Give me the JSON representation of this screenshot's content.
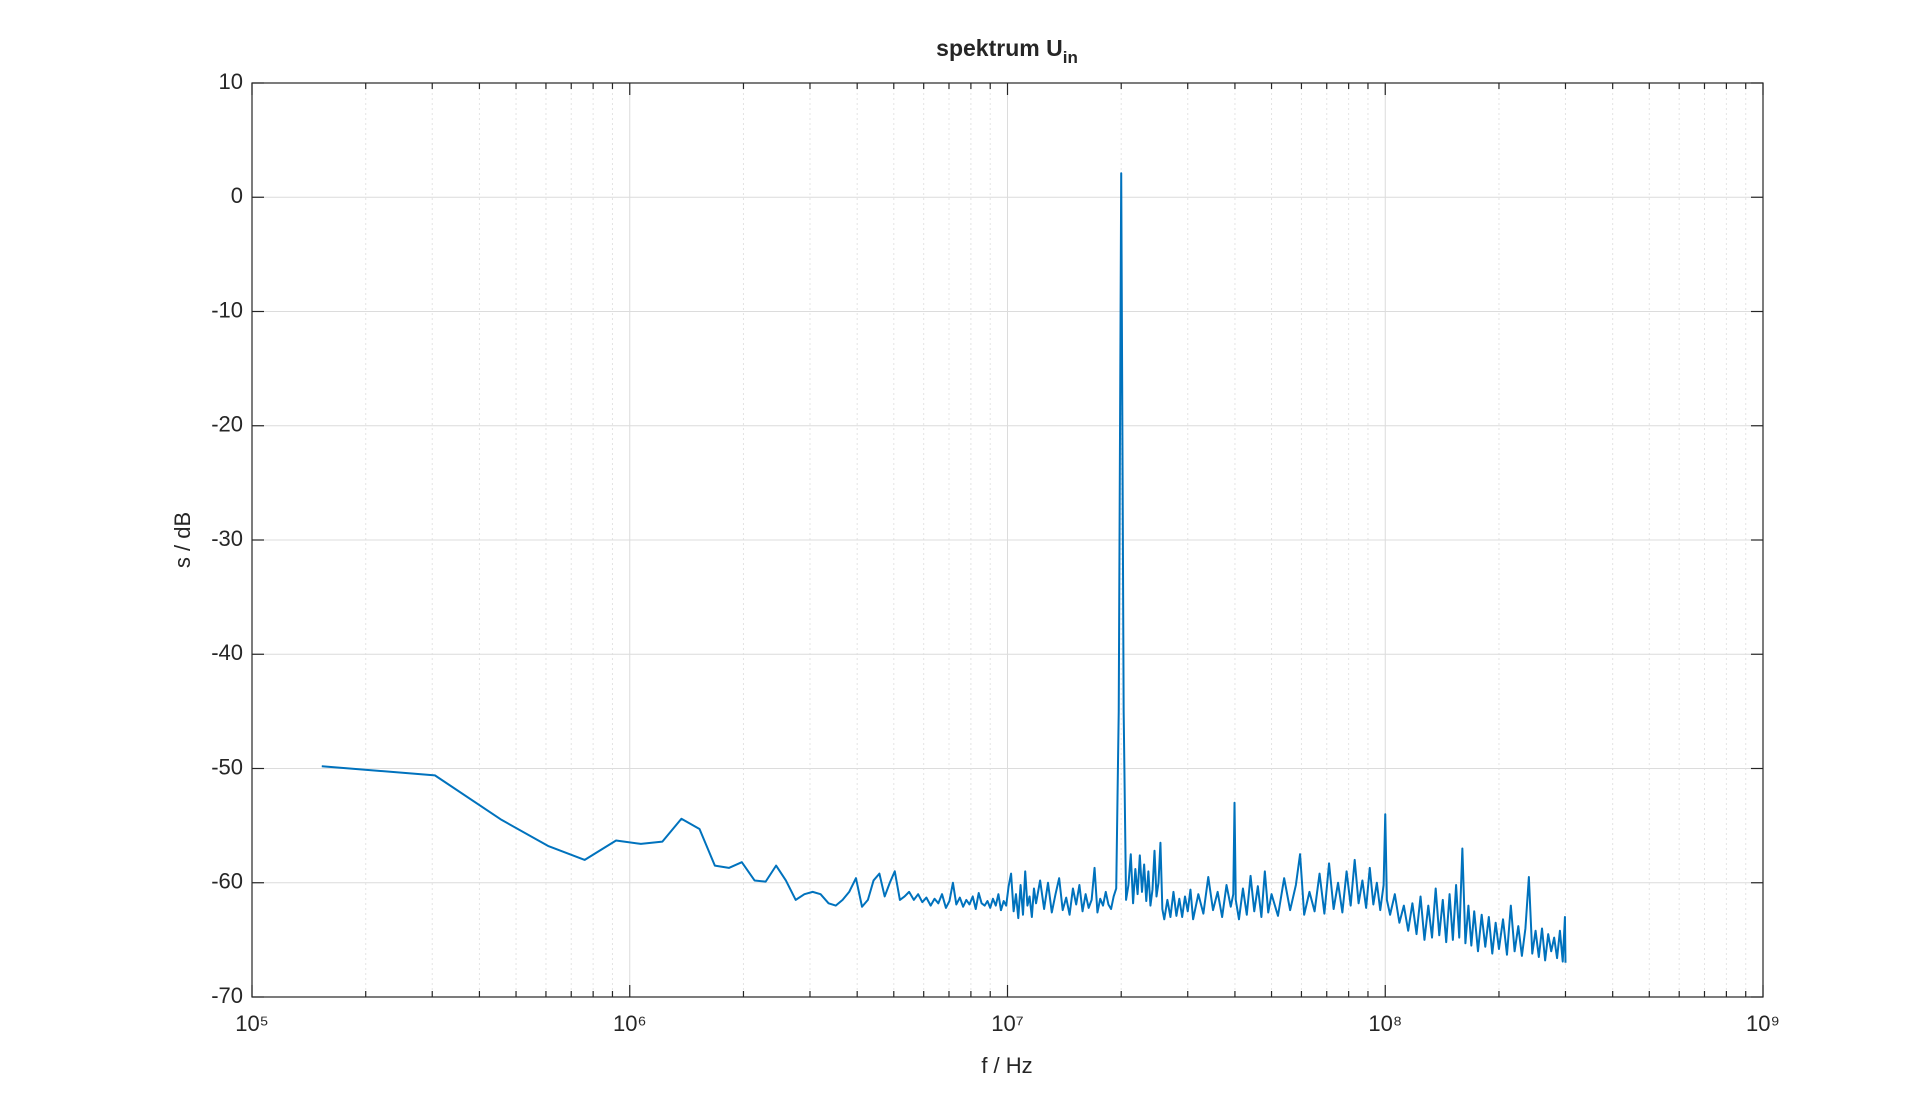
{
  "chart_data": {
    "type": "line",
    "title": "spektrum U",
    "title_subscript": "in",
    "x_label": "f / Hz",
    "y_label": "s / dB",
    "xscale": "log",
    "grid": true,
    "minor_grid": true,
    "xlim": [
      100000,
      1000000000
    ],
    "xticks": [
      {
        "value": 100000,
        "label": "10⁵"
      },
      {
        "value": 1000000,
        "label": "10⁶"
      },
      {
        "value": 10000000,
        "label": "10⁷"
      },
      {
        "value": 100000000,
        "label": "10⁸"
      },
      {
        "value": 1000000000,
        "label": "10⁹"
      }
    ],
    "ylim": [
      -70,
      10
    ],
    "yticks": [
      -70,
      -60,
      -50,
      -40,
      -30,
      -20,
      -10,
      0,
      10
    ],
    "x": [
      153000.0,
      305000.0,
      458000.0,
      610000.0,
      760000.0,
      920000.0,
      1070000.0,
      1220000.0,
      1370000.0,
      1530000.0,
      1680000.0,
      1830000.0,
      1980000.0,
      2140000.0,
      2290000.0,
      2440000.0,
      2590000.0,
      2750000.0,
      2900000.0,
      3050000.0,
      3200000.0,
      3360000.0,
      3510000.0,
      3660000.0,
      3810000.0,
      3970000.0,
      4120000.0,
      4270000.0,
      4420000.0,
      4580000.0,
      4730000.0,
      4880000.0,
      5030000.0,
      5190000.0,
      5340000.0,
      5490000.0,
      5650000.0,
      5800000.0,
      5950000.0,
      6100000.0,
      6260000.0,
      6410000.0,
      6560000.0,
      6710000.0,
      6870000.0,
      7020000.0,
      7170000.0,
      7320000.0,
      7480000.0,
      7630000.0,
      7780000.0,
      7930000.0,
      8090000.0,
      8240000.0,
      8390000.0,
      8540000.0,
      8700000.0,
      8850000.0,
      9000000.0,
      9150000.0,
      9310000.0,
      9460000.0,
      9610000.0,
      9770000.0,
      9920000.0,
      10070000.0,
      10220000.0,
      10380000.0,
      10530000.0,
      10680000.0,
      10830000.0,
      10990000.0,
      11140000.0,
      11290000.0,
      11440000.0,
      11600000.0,
      11750000.0,
      11900000.0,
      12200000.0,
      12500000.0,
      12800000.0,
      13100000.0,
      13400000.0,
      13700000.0,
      14000000.0,
      14300000.0,
      14600000.0,
      14900000.0,
      15200000.0,
      15500000.0,
      15800000.0,
      16100000.0,
      16400000.0,
      16700000.0,
      17000000.0,
      17300000.0,
      17600000.0,
      17900000.0,
      18200000.0,
      18500000.0,
      18800000.0,
      19100000.0,
      19400000.0,
      19700000.0,
      20000000.0,
      20300000.0,
      20600000.0,
      20900000.0,
      21200000.0,
      21500000.0,
      21800000.0,
      22100000.0,
      22400000.0,
      22700000.0,
      23000000.0,
      23300000.0,
      23600000.0,
      23900000.0,
      24200000.0,
      24500000.0,
      24800000.0,
      25100000.0,
      25400000.0,
      25700000.0,
      26000000.0,
      26500000.0,
      27000000.0,
      27500000.0,
      28000000.0,
      28500000.0,
      29000000.0,
      29500000.0,
      30000000.0,
      30500000.0,
      31000000.0,
      32000000.0,
      33000000.0,
      34000000.0,
      35000000.0,
      36000000.0,
      37000000.0,
      38000000.0,
      39000000.0,
      39600000.0,
      39900000.0,
      40200000.0,
      41000000.0,
      42000000.0,
      43000000.0,
      44000000.0,
      45000000.0,
      46000000.0,
      47000000.0,
      48000000.0,
      49000000.0,
      50000000.0,
      52000000.0,
      54000000.0,
      56000000.0,
      58000000.0,
      59500000.0,
      61000000.0,
      63000000.0,
      65000000.0,
      67000000.0,
      69000000.0,
      71000000.0,
      73000000.0,
      75000000.0,
      77000000.0,
      79000000.0,
      81000000.0,
      83000000.0,
      85000000.0,
      87000000.0,
      89000000.0,
      91000000.0,
      93000000.0,
      95000000.0,
      97000000.0,
      99000000.0,
      100000000.0,
      101000000.0,
      103000000.0,
      106000000.0,
      109000000.0,
      112000000.0,
      115000000.0,
      118000000.0,
      121000000.0,
      124000000.0,
      127000000.0,
      130000000.0,
      133000000.0,
      136000000.0,
      139000000.0,
      142000000.0,
      145000000.0,
      148000000.0,
      151000000.0,
      154000000.0,
      157000000.0,
      160000000.0,
      163000000.0,
      166000000.0,
      169000000.0,
      172000000.0,
      176000000.0,
      180000000.0,
      184000000.0,
      188000000.0,
      192000000.0,
      196000000.0,
      200000000.0,
      205000000.0,
      210000000.0,
      215000000.0,
      220000000.0,
      225000000.0,
      230000000.0,
      235000000.0,
      240000000.0,
      245000000.0,
      250000000.0,
      255000000.0,
      260000000.0,
      265000000.0,
      270000000.0,
      275000000.0,
      280000000.0,
      285000000.0,
      290000000.0,
      295000000.0,
      299000000.0,
      300000000.0
    ],
    "series": [
      {
        "color": "#0072bd",
        "values": [
          -49.8,
          -50.6,
          -54.5,
          -56.8,
          -58.0,
          -56.3,
          -56.6,
          -56.4,
          -54.4,
          -55.3,
          -58.5,
          -58.7,
          -58.2,
          -59.8,
          -59.9,
          -58.5,
          -59.8,
          -61.5,
          -61.0,
          -60.8,
          -61.0,
          -61.8,
          -62.0,
          -61.5,
          -60.8,
          -59.6,
          -62.1,
          -61.5,
          -59.8,
          -59.2,
          -61.2,
          -60.0,
          -59.0,
          -61.5,
          -61.2,
          -60.8,
          -61.5,
          -61.0,
          -61.7,
          -61.3,
          -62.0,
          -61.4,
          -61.8,
          -61.0,
          -62.2,
          -61.6,
          -60.0,
          -61.9,
          -61.3,
          -62.1,
          -61.5,
          -61.9,
          -61.2,
          -62.3,
          -60.9,
          -61.8,
          -62.0,
          -61.6,
          -62.2,
          -61.4,
          -62.0,
          -61.0,
          -62.4,
          -61.6,
          -62.0,
          -60.3,
          -59.2,
          -62.5,
          -61.0,
          -63.1,
          -60.2,
          -62.8,
          -59.0,
          -62.0,
          -61.2,
          -63.0,
          -60.5,
          -61.8,
          -59.8,
          -62.3,
          -60.0,
          -62.6,
          -61.0,
          -59.6,
          -62.4,
          -61.3,
          -62.8,
          -60.5,
          -61.9,
          -60.2,
          -62.5,
          -61.0,
          -62.2,
          -61.5,
          -58.7,
          -62.6,
          -61.4,
          -62.0,
          -60.8,
          -61.9,
          -62.3,
          -61.2,
          -60.5,
          -45.0,
          2.1,
          -45.0,
          -61.5,
          -60.2,
          -57.5,
          -61.8,
          -58.8,
          -61.0,
          -57.6,
          -60.8,
          -58.4,
          -61.6,
          -59.0,
          -62.0,
          -60.6,
          -57.2,
          -61.2,
          -60.0,
          -56.5,
          -62.3,
          -63.2,
          -61.5,
          -63.0,
          -60.8,
          -62.9,
          -61.4,
          -63.0,
          -61.2,
          -62.5,
          -60.6,
          -63.2,
          -61.0,
          -62.7,
          -59.5,
          -62.4,
          -60.8,
          -63.0,
          -60.2,
          -62.1,
          -61.0,
          -53.0,
          -61.5,
          -63.2,
          -60.5,
          -62.8,
          -59.4,
          -62.5,
          -60.3,
          -63.0,
          -59.0,
          -62.6,
          -61.0,
          -62.9,
          -59.6,
          -62.4,
          -60.2,
          -57.5,
          -62.8,
          -60.8,
          -62.5,
          -59.2,
          -62.7,
          -58.3,
          -62.3,
          -60.0,
          -62.6,
          -59.0,
          -62.0,
          -58.0,
          -61.8,
          -59.8,
          -62.2,
          -58.7,
          -61.9,
          -60.0,
          -62.4,
          -60.2,
          -54.0,
          -61.5,
          -62.8,
          -61.0,
          -63.5,
          -62.0,
          -64.2,
          -61.8,
          -64.5,
          -61.2,
          -65.0,
          -62.0,
          -64.8,
          -60.5,
          -64.6,
          -61.5,
          -65.2,
          -61.0,
          -65.0,
          -60.2,
          -64.8,
          -57.0,
          -65.3,
          -62.0,
          -65.5,
          -62.5,
          -66.0,
          -62.8,
          -65.6,
          -63.0,
          -66.2,
          -63.5,
          -65.8,
          -63.2,
          -66.3,
          -62.0,
          -66.0,
          -63.8,
          -66.4,
          -64.0,
          -59.5,
          -66.2,
          -64.2,
          -66.5,
          -64.0,
          -66.8,
          -64.5,
          -66.0,
          -64.8,
          -66.6,
          -64.2,
          -66.9,
          -63.0,
          -67.0
        ]
      }
    ]
  }
}
